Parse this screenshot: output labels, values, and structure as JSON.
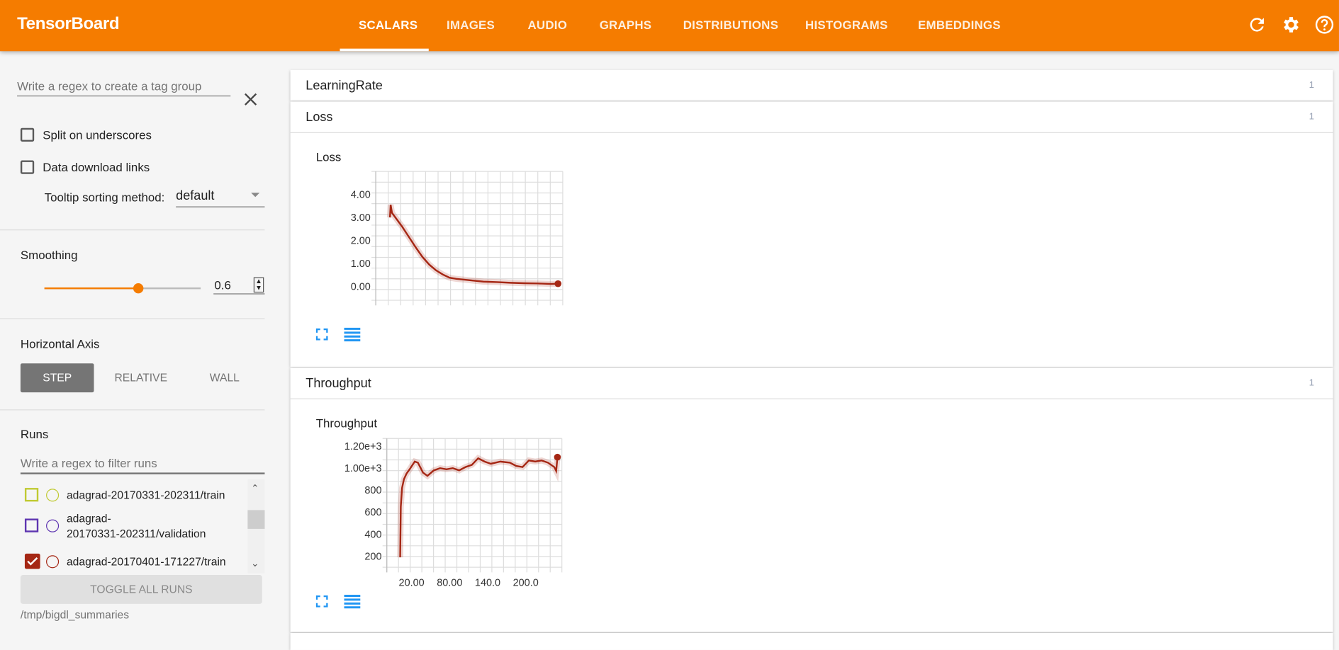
{
  "header": {
    "title": "TensorBoard",
    "tabs": [
      {
        "label": "SCALARS",
        "active": true
      },
      {
        "label": "IMAGES"
      },
      {
        "label": "AUDIO"
      },
      {
        "label": "GRAPHS"
      },
      {
        "label": "DISTRIBUTIONS"
      },
      {
        "label": "HISTOGRAMS"
      },
      {
        "label": "EMBEDDINGS"
      }
    ],
    "icons": [
      "refresh-icon",
      "settings-icon",
      "help-icon"
    ],
    "color": "#f57c00"
  },
  "sidebar": {
    "tag_group_placeholder": "Write a regex to create a tag group",
    "split_on_underscores": {
      "label": "Split on underscores",
      "checked": false
    },
    "data_download_links": {
      "label": "Data download links",
      "checked": false
    },
    "tooltip_sorting": {
      "label": "Tooltip sorting method:",
      "value": "default"
    },
    "smoothing": {
      "label": "Smoothing",
      "value": "0.6",
      "fraction": 0.6
    },
    "horizontal_axis": {
      "label": "Horizontal Axis",
      "options": [
        "STEP",
        "RELATIVE",
        "WALL"
      ],
      "selected": "STEP"
    },
    "runs": {
      "label": "Runs",
      "filter_placeholder": "Write a regex to filter runs",
      "items": [
        {
          "name": "adagrad-20170331-202311/train",
          "color": "#c0ca33",
          "checked": false
        },
        {
          "name": "adagrad-\n20170331-202311/validation",
          "color": "#5e35b1",
          "checked": false
        },
        {
          "name": "adagrad-20170401-171227/train",
          "color": "#a52714",
          "checked": true
        }
      ],
      "toggle_all": "TOGGLE ALL RUNS",
      "logdir": "/tmp/bigdl_summaries"
    }
  },
  "main": {
    "cards": [
      {
        "title": "LearningRate",
        "count": "1"
      },
      {
        "title": "Loss",
        "count": "1"
      },
      {
        "title": "Throughput",
        "count": "1"
      }
    ]
  },
  "chart_data": [
    {
      "type": "line",
      "title": "Loss",
      "series_color": "#a52714",
      "xlim": [
        -19,
        257
      ],
      "ylim": [
        -0.6,
        5.0
      ],
      "yticks": [
        "4.00",
        "3.00",
        "2.00",
        "1.00",
        "0.00"
      ],
      "xticks": [],
      "x": [
        2,
        3,
        5,
        10,
        20,
        30,
        40,
        50,
        60,
        70,
        80,
        90,
        100,
        110,
        120,
        140,
        160,
        180,
        200,
        220,
        240,
        250
      ],
      "y": [
        3.0,
        3.55,
        3.2,
        3.0,
        2.6,
        2.15,
        1.7,
        1.28,
        0.95,
        0.7,
        0.52,
        0.38,
        0.33,
        0.3,
        0.27,
        0.21,
        0.19,
        0.16,
        0.14,
        0.13,
        0.11,
        0.12
      ]
    },
    {
      "type": "line",
      "title": "Throughput",
      "series_color": "#a52714",
      "xlim": [
        -19,
        257
      ],
      "ylim": [
        100,
        1270
      ],
      "yticks": [
        "1.20e+3",
        "1.00e+3",
        "800",
        "600",
        "400",
        "200"
      ],
      "xticks": [
        "20.00",
        "80.00",
        "140.0",
        "200.0"
      ],
      "x": [
        2,
        3,
        5,
        8,
        12,
        17,
        25,
        30,
        38,
        45,
        55,
        65,
        75,
        85,
        95,
        105,
        115,
        125,
        135,
        145,
        160,
        175,
        185,
        195,
        205,
        215,
        225,
        235,
        245,
        248,
        250
      ],
      "y": [
        190,
        650,
        820,
        900,
        950,
        990,
        1060,
        1050,
        960,
        930,
        980,
        1000,
        990,
        1000,
        980,
        1010,
        1030,
        1090,
        1060,
        1040,
        1060,
        1050,
        1020,
        1010,
        1070,
        1060,
        1070,
        1050,
        1010,
        975,
        1100
      ]
    }
  ]
}
